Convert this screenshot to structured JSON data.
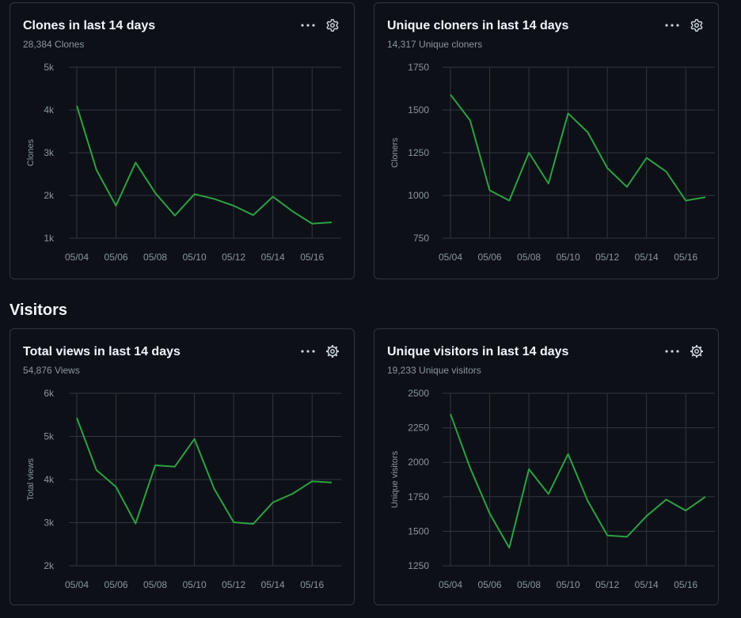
{
  "section": {
    "visitors_heading": "Visitors"
  },
  "colors": {
    "line": "#3fb950",
    "line_dim": "#2ea043",
    "grid": "#30363d",
    "tick": "#8b949e",
    "border": "#30363d"
  },
  "icons": {
    "more": "kebab-horizontal-icon",
    "settings": "gear-icon"
  },
  "cards": [
    {
      "title": "Clones in last 14 days",
      "subtitle": "28,384 Clones"
    },
    {
      "title": "Unique cloners in last 14 days",
      "subtitle": "14,317 Unique cloners"
    },
    {
      "title": "Total views in last 14 days",
      "subtitle": "54,876 Views"
    },
    {
      "title": "Unique visitors in last 14 days",
      "subtitle": "19,233 Unique visitors"
    }
  ],
  "chart_data": [
    {
      "type": "line",
      "x_tick_labels": [
        "05/04",
        "05/06",
        "05/08",
        "05/10",
        "05/12",
        "05/14",
        "05/16"
      ],
      "ylabel": "Clones",
      "ylim": [
        1000,
        5000
      ],
      "y_ticks": [
        1000,
        2000,
        3000,
        4000,
        5000
      ],
      "y_tick_labels": [
        "1k",
        "2k",
        "3k",
        "4k",
        "5k"
      ],
      "grid": true,
      "series": [
        {
          "values": [
            4100,
            2600,
            1760,
            2770,
            2060,
            1530,
            2030,
            1920,
            1760,
            1540,
            1970,
            1630,
            1340,
            1370
          ]
        }
      ]
    },
    {
      "type": "line",
      "x_tick_labels": [
        "05/04",
        "05/06",
        "05/08",
        "05/10",
        "05/12",
        "05/14",
        "05/16"
      ],
      "ylabel": "Cloners",
      "ylim": [
        750,
        1750
      ],
      "y_ticks": [
        750,
        1000,
        1250,
        1500,
        1750
      ],
      "y_tick_labels": [
        "750",
        "1000",
        "1250",
        "1500",
        "1750"
      ],
      "grid": true,
      "series": [
        {
          "values": [
            1590,
            1440,
            1030,
            970,
            1250,
            1070,
            1480,
            1370,
            1160,
            1050,
            1220,
            1140,
            970,
            990
          ]
        }
      ]
    },
    {
      "type": "line",
      "x_tick_labels": [
        "05/04",
        "05/06",
        "05/08",
        "05/10",
        "05/12",
        "05/14",
        "05/16"
      ],
      "ylabel": "Total views",
      "ylim": [
        2000,
        6000
      ],
      "y_ticks": [
        2000,
        3000,
        4000,
        5000,
        6000
      ],
      "y_tick_labels": [
        "2k",
        "3k",
        "4k",
        "5k",
        "6k"
      ],
      "grid": true,
      "series": [
        {
          "values": [
            5430,
            4220,
            3830,
            2980,
            4330,
            4300,
            4940,
            3790,
            3010,
            2970,
            3470,
            3670,
            3960,
            3930
          ]
        }
      ]
    },
    {
      "type": "line",
      "x_tick_labels": [
        "05/04",
        "05/06",
        "05/08",
        "05/10",
        "05/12",
        "05/14",
        "05/16"
      ],
      "ylabel": "Unique visitors",
      "ylim": [
        1250,
        2500
      ],
      "y_ticks": [
        1250,
        1500,
        1750,
        2000,
        2250,
        2500
      ],
      "y_tick_labels": [
        "1250",
        "1500",
        "1750",
        "2000",
        "2250",
        "2500"
      ],
      "grid": true,
      "series": [
        {
          "values": [
            2350,
            1960,
            1630,
            1380,
            1950,
            1770,
            2060,
            1720,
            1470,
            1460,
            1610,
            1730,
            1650,
            1750
          ]
        }
      ]
    }
  ]
}
